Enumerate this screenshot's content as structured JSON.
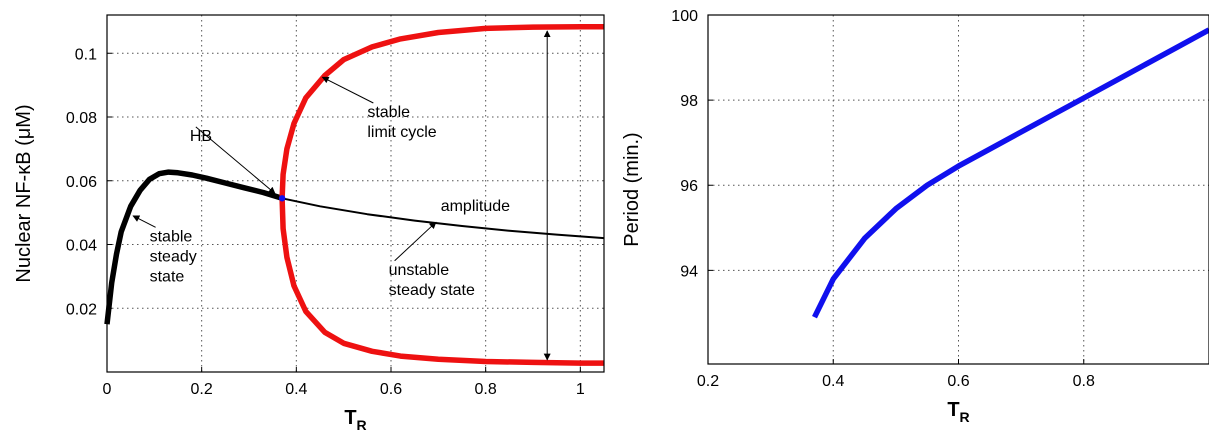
{
  "chart_data": [
    {
      "type": "line",
      "title": "",
      "xlabel": "T",
      "xlabel_subscript": "R",
      "ylabel": "Nuclear NF-κB (μM)",
      "xlim": [
        0,
        1.05
      ],
      "ylim": [
        0,
        0.112
      ],
      "xticks": [
        0,
        0.2,
        0.4,
        0.6,
        0.8,
        1
      ],
      "xtick_labels": [
        "0",
        "0.2",
        "0.4",
        "0.6",
        "0.8",
        "1"
      ],
      "yticks": [
        0.02,
        0.04,
        0.06,
        0.08,
        0.1
      ],
      "ytick_labels": [
        "0.02",
        "0.04",
        "0.06",
        "0.08",
        "0.1"
      ],
      "grid": true,
      "hb_point": {
        "x": 0.37,
        "y": 0.0545
      },
      "series": [
        {
          "role": "stable steady state",
          "color": "#000000",
          "style": "thick",
          "x": [
            0.0,
            0.01,
            0.02,
            0.03,
            0.05,
            0.07,
            0.09,
            0.11,
            0.13,
            0.15,
            0.18,
            0.21,
            0.25,
            0.29,
            0.33,
            0.37
          ],
          "y": [
            0.015,
            0.028,
            0.037,
            0.044,
            0.052,
            0.057,
            0.0605,
            0.0622,
            0.0627,
            0.0625,
            0.0618,
            0.0608,
            0.0593,
            0.0578,
            0.0563,
            0.0545
          ]
        },
        {
          "role": "unstable steady state",
          "color": "#000000",
          "style": "thin",
          "x": [
            0.37,
            0.45,
            0.55,
            0.65,
            0.75,
            0.85,
            0.95,
            1.05
          ],
          "y": [
            0.0545,
            0.052,
            0.0495,
            0.0475,
            0.0458,
            0.0443,
            0.0431,
            0.042
          ]
        },
        {
          "role": "stable limit cycle (max)",
          "color": "#ee1111",
          "style": "thick",
          "x": [
            0.37,
            0.372,
            0.38,
            0.395,
            0.42,
            0.46,
            0.5,
            0.56,
            0.62,
            0.7,
            0.8,
            0.9,
            1.0,
            1.05
          ],
          "y": [
            0.0545,
            0.062,
            0.07,
            0.078,
            0.086,
            0.093,
            0.098,
            0.102,
            0.1045,
            0.1065,
            0.1078,
            0.1082,
            0.1083,
            0.1083
          ]
        },
        {
          "role": "stable limit cycle (min)",
          "color": "#ee1111",
          "style": "thick",
          "x": [
            0.37,
            0.372,
            0.38,
            0.395,
            0.42,
            0.46,
            0.5,
            0.56,
            0.62,
            0.7,
            0.8,
            0.9,
            1.0,
            1.05
          ],
          "y": [
            0.0545,
            0.045,
            0.036,
            0.027,
            0.019,
            0.0125,
            0.009,
            0.0065,
            0.005,
            0.004,
            0.0033,
            0.003,
            0.0028,
            0.0028
          ]
        }
      ],
      "annotations": [
        {
          "lines": [
            "stable",
            "steady",
            "state"
          ],
          "tx": 0.09,
          "ty": 0.041,
          "ax": 0.055,
          "ay": 0.049
        },
        {
          "lines": [
            "HB"
          ],
          "tx": 0.175,
          "ty": 0.0725,
          "ax": 0.355,
          "ay": 0.056
        },
        {
          "lines": [
            "stable",
            "limit cycle"
          ],
          "tx": 0.55,
          "ty": 0.08,
          "ax": 0.455,
          "ay": 0.0925
        },
        {
          "lines": [
            "unstable",
            "steady state"
          ],
          "tx": 0.595,
          "ty": 0.0305,
          "ax": 0.695,
          "ay": 0.047
        },
        {
          "lines": [
            "amplitude"
          ],
          "tx": 0.705,
          "ty": 0.0505,
          "ax": null,
          "ay": null
        }
      ],
      "amplitude_arrow": {
        "x": 0.93,
        "y_top": 0.107,
        "y_bottom": 0.0038
      }
    },
    {
      "type": "line",
      "title": "",
      "xlabel": "T",
      "xlabel_subscript": "R",
      "ylabel": "Period (min.)",
      "xlim": [
        0.2,
        1.0
      ],
      "ylim": [
        91.8,
        100
      ],
      "xticks": [
        0.2,
        0.4,
        0.6,
        0.8
      ],
      "xtick_labels": [
        "0.2",
        "0.4",
        "0.6",
        "0.8"
      ],
      "yticks": [
        94,
        96,
        98,
        100
      ],
      "ytick_labels": [
        "94",
        "96",
        "98",
        "100"
      ],
      "grid": true,
      "series": [
        {
          "role": "period",
          "color": "#1010ee",
          "style": "thick",
          "x": [
            0.37,
            0.4,
            0.45,
            0.5,
            0.55,
            0.6,
            0.65,
            0.7,
            0.75,
            0.8,
            0.85,
            0.9,
            0.95,
            1.0
          ],
          "y": [
            92.9,
            93.8,
            94.75,
            95.45,
            96.0,
            96.45,
            96.85,
            97.25,
            97.65,
            98.05,
            98.45,
            98.85,
            99.25,
            99.65
          ]
        }
      ]
    }
  ]
}
